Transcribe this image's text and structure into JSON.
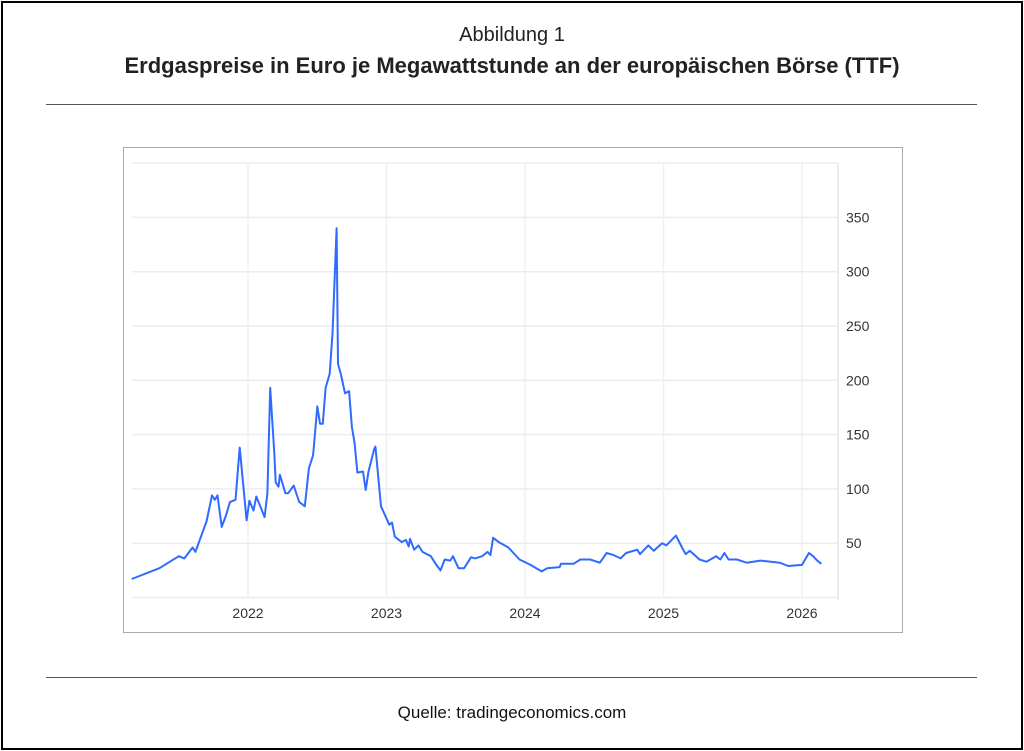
{
  "caption": {
    "figure_label": "Abbildung 1",
    "title": "Erdgaspreise in Euro je Megawattstunde an der europäischen Börse (TTF)"
  },
  "source": "Quelle: tradingeconomics.com",
  "chart_data": {
    "type": "line",
    "title": "Erdgaspreise in Euro je Megawattstunde an der europäischen Börse (TTF)",
    "xlabel": "",
    "ylabel": "",
    "xlim": [
      2021.16,
      2026.16
    ],
    "ylim": [
      0,
      400
    ],
    "x_ticks": [
      2022,
      2023,
      2024,
      2025,
      2026
    ],
    "x_tick_labels": [
      "2022",
      "2023",
      "2024",
      "2025",
      "2026"
    ],
    "y_ticks": [
      50,
      100,
      150,
      200,
      250,
      300,
      350
    ],
    "y_tick_labels": [
      "50",
      "100",
      "150",
      "200",
      "250",
      "300",
      "350"
    ],
    "y_axis_side": "right",
    "grid": true,
    "color": "#2f6bff",
    "series": [
      {
        "name": "TTF",
        "x": [
          2021.16,
          2021.36,
          2021.5,
          2021.54,
          2021.6,
          2021.62,
          2021.7,
          2021.74,
          2021.76,
          2021.78,
          2021.81,
          2021.84,
          2021.87,
          2021.91,
          2021.94,
          2021.99,
          2022.01,
          2022.04,
          2022.06,
          2022.12,
          2022.14,
          2022.16,
          2022.19,
          2022.2,
          2022.22,
          2022.23,
          2022.27,
          2022.29,
          2022.33,
          2022.37,
          2022.41,
          2022.44,
          2022.47,
          2022.5,
          2022.52,
          2022.54,
          2022.56,
          2022.59,
          2022.61,
          2022.64,
          2022.65,
          2022.67,
          2022.7,
          2022.73,
          2022.75,
          2022.77,
          2022.79,
          2022.83,
          2022.85,
          2022.87,
          2022.91,
          2022.92,
          2022.96,
          2023.02,
          2023.04,
          2023.06,
          2023.11,
          2023.14,
          2023.16,
          2023.17,
          2023.2,
          2023.23,
          2023.26,
          2023.32,
          2023.36,
          2023.39,
          2023.42,
          2023.46,
          2023.48,
          2023.52,
          2023.56,
          2023.61,
          2023.64,
          2023.69,
          2023.73,
          2023.75,
          2023.77,
          2023.81,
          2023.88,
          2023.96,
          2024.04,
          2024.12,
          2024.16,
          2024.25,
          2024.26,
          2024.35,
          2024.4,
          2024.47,
          2024.54,
          2024.59,
          2024.64,
          2024.69,
          2024.73,
          2024.81,
          2024.83,
          2024.89,
          2024.93,
          2024.99,
          2025.02,
          2025.09,
          2025.13,
          2025.16,
          2025.19,
          2025.26,
          2025.31,
          2025.38,
          2025.41,
          2025.44,
          2025.47,
          2025.53,
          2025.6,
          2025.7,
          2025.84,
          2025.9,
          2026.0,
          2026.05,
          2026.08,
          2026.11,
          2026.14
        ],
        "y": [
          17,
          27,
          38,
          36,
          46,
          42,
          70,
          94,
          90,
          94,
          65,
          75,
          88,
          90,
          138,
          71,
          89,
          80,
          93,
          74,
          96,
          193,
          133,
          106,
          102,
          113,
          96,
          96,
          103,
          88,
          84,
          119,
          131,
          176,
          160,
          160,
          193,
          206,
          243,
          340,
          215,
          206,
          188,
          190,
          157,
          142,
          115,
          116,
          99,
          116,
          136,
          139,
          84,
          67,
          69,
          56,
          51,
          53,
          47,
          54,
          44,
          48,
          42,
          38,
          30,
          25,
          35,
          34,
          38,
          27,
          27,
          37,
          36,
          38,
          42,
          39,
          55,
          51,
          46,
          35,
          30,
          24,
          27,
          28,
          31,
          31,
          35,
          35,
          32,
          41,
          39,
          36,
          41,
          44,
          40,
          48,
          43,
          50,
          48,
          57,
          47,
          40,
          43,
          35,
          33,
          38,
          35,
          41,
          35,
          35,
          32,
          34,
          32,
          29,
          30,
          41,
          38,
          34,
          31
        ]
      }
    ]
  }
}
